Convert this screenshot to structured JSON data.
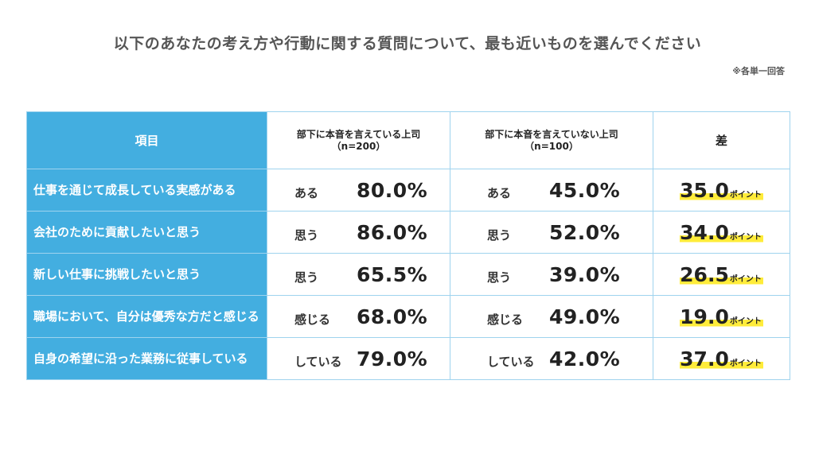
{
  "title": "以下のあなたの考え方や行動に関する質問について、最も近いものを選んでください",
  "note": "※各単一回答",
  "headers": {
    "item": "項目",
    "group1_title": "部下に本音を言えている上司",
    "group1_n": "（n=200）",
    "group2_title": "部下に本音を言えていない上司",
    "group2_n": "（n=100）",
    "diff": "差"
  },
  "point_unit": "ポイント",
  "rows": [
    {
      "item": "仕事を通じて成長している実感がある",
      "answer": "ある",
      "group1": "80.0%",
      "group2": "45.0%",
      "diff": "35.0"
    },
    {
      "item": "会社のために貢献したいと思う",
      "answer": "思う",
      "group1": "86.0%",
      "group2": "52.0%",
      "diff": "34.0"
    },
    {
      "item": "新しい仕事に挑戦したいと思う",
      "answer": "思う",
      "group1": "65.5%",
      "group2": "39.0%",
      "diff": "26.5"
    },
    {
      "item": "職場において、自分は優秀な方だと感じる",
      "answer": "感じる",
      "group1": "68.0%",
      "group2": "49.0%",
      "diff": "19.0"
    },
    {
      "item": "自身の希望に沿った業務に従事している",
      "answer": "している",
      "group1": "79.0%",
      "group2": "42.0%",
      "diff": "37.0"
    }
  ],
  "colors": {
    "header_blue": "#43aee0",
    "highlight_yellow": "#ffec3a",
    "border": "#9fd3ee"
  },
  "chart_data": {
    "type": "table",
    "title": "以下のあなたの考え方や行動に関する質問について、最も近いものを選んでください",
    "columns": [
      "項目",
      "部下に本音を言えている上司（n=200）",
      "部下に本音を言えていない上司（n=100）",
      "差"
    ],
    "categories": [
      "仕事を通じて成長している実感がある",
      "会社のために貢献したいと思う",
      "新しい仕事に挑戦したいと思う",
      "職場において、自分は優秀な方だと感じる",
      "自身の希望に沿った業務に従事している"
    ],
    "series": [
      {
        "name": "部下に本音を言えている上司",
        "values": [
          80.0,
          86.0,
          65.5,
          68.0,
          79.0
        ]
      },
      {
        "name": "部下に本音を言えていない上司",
        "values": [
          45.0,
          52.0,
          39.0,
          49.0,
          42.0
        ]
      },
      {
        "name": "差",
        "values": [
          35.0,
          34.0,
          26.5,
          19.0,
          37.0
        ]
      }
    ]
  }
}
